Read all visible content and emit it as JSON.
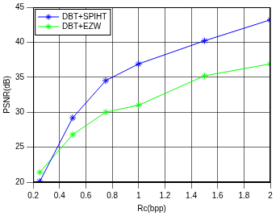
{
  "chart_data": {
    "type": "line",
    "x_label": "Rc(bpp)",
    "y_label": "PSNR(dB)",
    "x": [
      0.25,
      0.5,
      0.75,
      1,
      1.5,
      2
    ],
    "series": [
      {
        "name": "DBT+SPIHT",
        "color": "#0000ff",
        "marker": "star",
        "line_style": "solid",
        "values": [
          20.1,
          29.2,
          34.5,
          36.9,
          40.2,
          43.2
        ]
      },
      {
        "name": "DBT+EZW",
        "color": "#00ff00",
        "marker": "star",
        "line_style": "solid",
        "values": [
          21.4,
          26.8,
          30.0,
          31.0,
          35.2,
          36.9
        ]
      }
    ],
    "xlim": [
      0.2,
      2
    ],
    "xticks": [
      0.2,
      0.4,
      0.6,
      0.8,
      1,
      1.2,
      1.4,
      1.6,
      1.8,
      2
    ],
    "ylim": [
      20,
      45
    ],
    "yticks": [
      20,
      25,
      30,
      35,
      40,
      45
    ],
    "grid": true,
    "legend": "upper left"
  }
}
